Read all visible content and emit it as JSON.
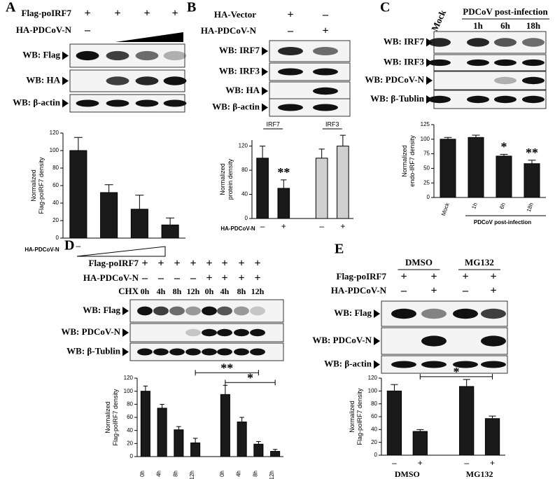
{
  "figure": {
    "panels": [
      {
        "letter": "A",
        "conditions": [
          {
            "label": "Flag-poIRF7",
            "marks": [
              "+",
              "+",
              "+",
              "+"
            ]
          },
          {
            "label": "HA-PDCoV-N",
            "marks": [
              "–"
            ]
          }
        ],
        "blots": [
          "WB: Flag",
          "WB: HA",
          "WB: β-actin"
        ]
      },
      {
        "letter": "B",
        "conditions": [
          {
            "label": "HA-Vector",
            "marks": [
              "+",
              "–"
            ]
          },
          {
            "label": "HA-PDCoV-N",
            "marks": [
              "–",
              "+"
            ]
          }
        ],
        "blots": [
          "WB: IRF7",
          "WB: IRF3",
          "WB: HA",
          "WB: β-actin"
        ]
      },
      {
        "letter": "C",
        "header": "Mock",
        "header_group": "PDCoV post-infection",
        "times": [
          "1h",
          "6h",
          "18h"
        ],
        "blots": [
          "WB: IRF7",
          "WB: IRF3",
          "WB: PDCoV-N",
          "WB: β-Tublin"
        ]
      },
      {
        "letter": "D",
        "conditions": [
          {
            "label": "Flag-poIRF7",
            "marks": [
              "+",
              "+",
              "+",
              "+",
              "+",
              "+",
              "+",
              "+"
            ]
          },
          {
            "label": "HA-PDCoV-N",
            "marks": [
              "–",
              "–",
              "–",
              "–",
              "+",
              "+",
              "+",
              "+"
            ]
          },
          {
            "label": "CHX",
            "marks": [
              "0h",
              "4h",
              "8h",
              "12h",
              "0h",
              "4h",
              "8h",
              "12h"
            ]
          }
        ],
        "blots": [
          "WB: Flag",
          "WB: PDCoV-N",
          "WB: β-Tublin"
        ]
      },
      {
        "letter": "E",
        "groups": [
          "DMSO",
          "MG132"
        ],
        "conditions": [
          {
            "label": "Flag-poIRF7",
            "marks": [
              "+",
              "+",
              "+",
              "+"
            ]
          },
          {
            "label": "HA-PDCoV-N",
            "marks": [
              "–",
              "+",
              "–",
              "+"
            ]
          }
        ],
        "blots": [
          "WB: Flag",
          "WB: PDCoV-N",
          "WB: β-actin"
        ]
      }
    ]
  },
  "chart_data": [
    {
      "type": "bar",
      "ylabel": [
        "Normalized",
        "Flag-poIRF7 density"
      ],
      "ylim": [
        0,
        120
      ],
      "yticks": [
        0,
        20,
        40,
        60,
        80,
        100,
        120
      ],
      "categories": [
        "–",
        null,
        null,
        null
      ],
      "values": [
        100,
        52,
        33,
        15
      ],
      "errors": [
        15,
        9,
        16,
        8
      ],
      "color": "#1a1a1a",
      "xlabel": "HA-PDCoV-N"
    },
    {
      "type": "bar",
      "ylabel": [
        "Normalized",
        "protein density"
      ],
      "ylim": [
        0,
        130
      ],
      "yticks": [
        0,
        40,
        80,
        120
      ],
      "groups": [
        "IRF7",
        "IRF3"
      ],
      "categories": [
        "–",
        "+",
        "–",
        "+"
      ],
      "values": [
        100,
        50,
        100,
        120
      ],
      "errors": [
        20,
        14,
        15,
        18
      ],
      "colors": [
        "#1a1a1a",
        "#1a1a1a",
        "#d0d0d0",
        "#d0d0d0"
      ],
      "xlabel": "HA-PDCoV-N",
      "annotations": [
        {
          "text": "**",
          "index": 1
        }
      ]
    },
    {
      "type": "bar",
      "ylabel": [
        "Normalized",
        "endo-IRF7 density"
      ],
      "ylim": [
        0,
        125
      ],
      "yticks": [
        0,
        25,
        50,
        75,
        100,
        125
      ],
      "categories": [
        "Mock",
        "1h",
        "6h",
        "18h"
      ],
      "values": [
        100,
        103,
        71,
        58
      ],
      "errors": [
        3,
        4,
        3,
        6
      ],
      "color": "#1a1a1a",
      "xlabel": "PDCoV post-infection",
      "annotations": [
        {
          "text": "*",
          "index": 2
        },
        {
          "text": "**",
          "index": 3
        }
      ]
    },
    {
      "type": "bar",
      "ylabel": [
        "Normalized",
        "Flag-poIRF7 density"
      ],
      "ylim": [
        0,
        120
      ],
      "yticks": [
        0,
        20,
        40,
        60,
        80,
        100,
        120
      ],
      "categories": [
        "0h",
        "4h",
        "8h",
        "12h",
        "0h",
        "4h",
        "8h",
        "12h"
      ],
      "values": [
        100,
        74,
        41,
        21,
        95,
        53,
        19,
        8
      ],
      "errors": [
        8,
        6,
        5,
        7,
        14,
        7,
        4,
        3
      ],
      "color": "#1a1a1a",
      "brackets": [
        {
          "text": "*",
          "from": 4,
          "to": 7
        },
        {
          "text": "**",
          "from": 3,
          "to": 6
        }
      ]
    },
    {
      "type": "bar",
      "ylabel": [
        "Normalized",
        "Flag-poIRF7 density"
      ],
      "ylim": [
        0,
        120
      ],
      "yticks": [
        0,
        20,
        40,
        60,
        80,
        100,
        120
      ],
      "groups": [
        "DMSO",
        "MG132"
      ],
      "categories": [
        "–",
        "+",
        "–",
        "+"
      ],
      "values": [
        100,
        37,
        107,
        57
      ],
      "errors": [
        10,
        3,
        11,
        4
      ],
      "color": "#1a1a1a",
      "brackets": [
        {
          "text": "*",
          "from": 1,
          "to": 3
        }
      ]
    }
  ]
}
